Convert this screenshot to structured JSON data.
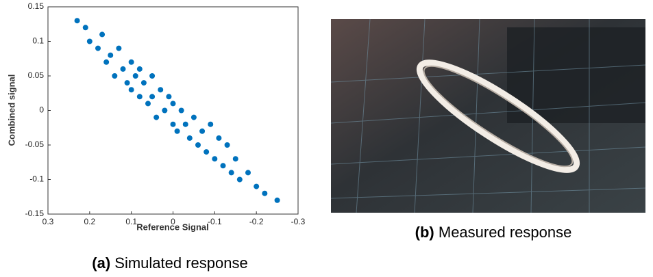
{
  "chart_data": {
    "type": "scatter",
    "x_label": "Reference Signal",
    "y_label": "Combined signal",
    "caption_label": "(a)",
    "caption": "Simulated response",
    "color": "#0072bd",
    "xlim": [
      0.3,
      -0.3
    ],
    "xticks": [
      0.3,
      0.2,
      0.1,
      0,
      -0.1,
      -0.2,
      -0.3
    ],
    "ylim": [
      -0.15,
      0.15
    ],
    "yticks": [
      -0.15,
      -0.1,
      -0.05,
      0,
      0.05,
      0.1,
      0.15
    ],
    "grid": false,
    "x": [
      0.23,
      0.21,
      0.2,
      0.18,
      0.17,
      0.16,
      0.15,
      0.14,
      0.13,
      0.12,
      0.11,
      0.1,
      0.1,
      0.09,
      0.08,
      0.08,
      0.07,
      0.06,
      0.05,
      0.05,
      0.04,
      0.03,
      0.02,
      0.01,
      0,
      0,
      -0.01,
      -0.02,
      -0.03,
      -0.04,
      -0.05,
      -0.06,
      -0.07,
      -0.08,
      -0.09,
      -0.1,
      -0.11,
      -0.12,
      -0.13,
      -0.14,
      -0.15,
      -0.16,
      -0.18,
      -0.2,
      -0.22,
      -0.25
    ],
    "values": [
      0.13,
      0.12,
      0.1,
      0.09,
      0.11,
      0.07,
      0.08,
      0.05,
      0.09,
      0.06,
      0.04,
      0.07,
      0.03,
      0.05,
      0.02,
      0.06,
      0.04,
      0.01,
      0.05,
      0.02,
      -0.01,
      0.03,
      0,
      0.02,
      -0.02,
      0.01,
      -0.03,
      0,
      -0.02,
      -0.04,
      -0.01,
      -0.05,
      -0.03,
      -0.06,
      -0.02,
      -0.07,
      -0.04,
      -0.08,
      -0.05,
      -0.09,
      -0.07,
      -0.1,
      -0.09,
      -0.11,
      -0.12,
      -0.13
    ]
  },
  "photo": {
    "caption_label": "(b)",
    "caption": "Measured response"
  }
}
